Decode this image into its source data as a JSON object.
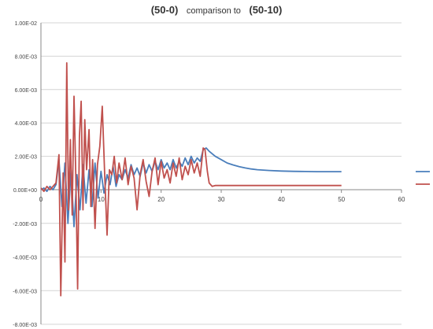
{
  "chart_data": {
    "type": "line",
    "title_parts": [
      "(50-0)",
      "comparison to",
      "(50-10)"
    ],
    "xlabel": "",
    "ylabel": "",
    "xlim": [
      0,
      60
    ],
    "ylim": [
      -0.008,
      0.01
    ],
    "x_ticks": [
      {
        "value": 0,
        "label": "0"
      },
      {
        "value": 10,
        "label": "10"
      },
      {
        "value": 20,
        "label": "20"
      },
      {
        "value": 30,
        "label": "30"
      },
      {
        "value": 40,
        "label": "40"
      },
      {
        "value": 50,
        "label": "50"
      },
      {
        "value": 60,
        "label": "60"
      }
    ],
    "y_ticks": [
      {
        "value": 0.01,
        "label": "1.00E-02"
      },
      {
        "value": 0.008,
        "label": "8.00E-03"
      },
      {
        "value": 0.006,
        "label": "6.00E-03"
      },
      {
        "value": 0.004,
        "label": "4.00E-03"
      },
      {
        "value": 0.002,
        "label": "2.00E-03"
      },
      {
        "value": 0,
        "label": "0.00E+00"
      },
      {
        "value": -0.002,
        "label": "-2.00E-03"
      },
      {
        "value": -0.004,
        "label": "-4.00E-03"
      },
      {
        "value": -0.006,
        "label": "-6.00E-03"
      },
      {
        "value": -0.008,
        "label": "-8.00E-03"
      }
    ],
    "grid": "horizontal",
    "legend": "right",
    "series": [
      {
        "color": "#4a7ebb",
        "points": [
          [
            0,
            0
          ],
          [
            0.5,
            0.0001
          ],
          [
            1,
            -0.0001
          ],
          [
            1.5,
            0.0002
          ],
          [
            2,
            0
          ],
          [
            2.5,
            0.0003
          ],
          [
            3,
            0.0018
          ],
          [
            3.5,
            -0.001
          ],
          [
            4,
            0.0016
          ],
          [
            4.5,
            -0.002
          ],
          [
            5,
            0.0012
          ],
          [
            5.5,
            -0.0022
          ],
          [
            6,
            0.0009
          ],
          [
            6.5,
            -0.0012
          ],
          [
            7,
            0.0015
          ],
          [
            7.5,
            -0.0008
          ],
          [
            8,
            0.0012
          ],
          [
            8.5,
            -0.001
          ],
          [
            9,
            0.0016
          ],
          [
            9.5,
            -0.0005
          ],
          [
            10,
            0.0011
          ],
          [
            10.5,
            -0.0002
          ],
          [
            11,
            0.0009
          ],
          [
            11.5,
            0.0003
          ],
          [
            12,
            0.0014
          ],
          [
            12.5,
            0.0002
          ],
          [
            13,
            0.0009
          ],
          [
            13.5,
            0.0006
          ],
          [
            14,
            0.0012
          ],
          [
            14.5,
            0.0007
          ],
          [
            15,
            0.0015
          ],
          [
            15.5,
            0.0009
          ],
          [
            16,
            0.0013
          ],
          [
            16.5,
            0.0008
          ],
          [
            17,
            0.0016
          ],
          [
            17.5,
            0.001
          ],
          [
            18,
            0.0015
          ],
          [
            18.5,
            0.0011
          ],
          [
            19,
            0.0017
          ],
          [
            19.5,
            0.0012
          ],
          [
            20,
            0.0018
          ],
          [
            20.5,
            0.0013
          ],
          [
            21,
            0.0016
          ],
          [
            21.5,
            0.0012
          ],
          [
            22,
            0.0018
          ],
          [
            22.5,
            0.0013
          ],
          [
            23,
            0.0017
          ],
          [
            23.5,
            0.0014
          ],
          [
            24,
            0.0019
          ],
          [
            24.5,
            0.0015
          ],
          [
            25,
            0.002
          ],
          [
            25.5,
            0.0016
          ],
          [
            26,
            0.0019
          ],
          [
            26.5,
            0.0017
          ],
          [
            27,
            0.0024
          ],
          [
            27.5,
            0.0025
          ],
          [
            28,
            0.0023
          ],
          [
            29,
            0.002
          ],
          [
            30,
            0.0018
          ],
          [
            31,
            0.0016
          ],
          [
            32,
            0.00148
          ],
          [
            33,
            0.00138
          ],
          [
            34,
            0.0013
          ],
          [
            35,
            0.00124
          ],
          [
            36,
            0.0012
          ],
          [
            38,
            0.00115
          ],
          [
            40,
            0.00112
          ],
          [
            42,
            0.0011
          ],
          [
            44,
            0.00109
          ],
          [
            46,
            0.00108
          ],
          [
            48,
            0.00108
          ],
          [
            50,
            0.00108
          ]
        ]
      },
      {
        "color": "#c0504d",
        "points": [
          [
            0,
            0.0001
          ],
          [
            0.5,
            -0.0001
          ],
          [
            1,
            0.0002
          ],
          [
            1.5,
            0
          ],
          [
            2,
            0.0002
          ],
          [
            2.5,
            0.0004
          ],
          [
            3,
            0.0021
          ],
          [
            3.3,
            -0.0063
          ],
          [
            3.7,
            0.001
          ],
          [
            4,
            -0.0043
          ],
          [
            4.3,
            0.0076
          ],
          [
            4.6,
            -0.0012
          ],
          [
            4.9,
            0.003
          ],
          [
            5.2,
            -0.0015
          ],
          [
            5.5,
            0.0056
          ],
          [
            5.8,
            0.0008
          ],
          [
            6.1,
            -0.0059
          ],
          [
            6.4,
            0.0032
          ],
          [
            6.7,
            0.0053
          ],
          [
            7,
            -0.0012
          ],
          [
            7.3,
            0.0042
          ],
          [
            7.6,
            0.0012
          ],
          [
            8,
            0.0036
          ],
          [
            8.3,
            -0.001
          ],
          [
            8.6,
            0.0018
          ],
          [
            9,
            -0.0023
          ],
          [
            9.4,
            0.0015
          ],
          [
            9.8,
            0.0026
          ],
          [
            10.2,
            0.005
          ],
          [
            10.6,
            0.001
          ],
          [
            11,
            -0.0027
          ],
          [
            11.4,
            0.0012
          ],
          [
            11.8,
            0.0009
          ],
          [
            12.2,
            0.002
          ],
          [
            12.6,
            0.0004
          ],
          [
            13,
            0.0016
          ],
          [
            13.5,
            0.0006
          ],
          [
            14,
            0.0019
          ],
          [
            14.5,
            0.0003
          ],
          [
            15,
            0.0014
          ],
          [
            15.5,
            0.0007
          ],
          [
            16,
            -0.0012
          ],
          [
            16.5,
            0.0009
          ],
          [
            17,
            0.0018
          ],
          [
            17.5,
            0.0005
          ],
          [
            18,
            -0.0004
          ],
          [
            18.5,
            0.0011
          ],
          [
            19,
            0.0019
          ],
          [
            19.5,
            0.0003
          ],
          [
            20,
            0.0017
          ],
          [
            20.5,
            0.0007
          ],
          [
            21,
            0.0012
          ],
          [
            21.5,
            0.0004
          ],
          [
            22,
            0.0016
          ],
          [
            22.5,
            0.0008
          ],
          [
            23,
            0.0019
          ],
          [
            23.5,
            0.0006
          ],
          [
            24,
            0.0014
          ],
          [
            24.5,
            0.0009
          ],
          [
            25,
            0.0018
          ],
          [
            25.5,
            0.001
          ],
          [
            26,
            0.0016
          ],
          [
            26.5,
            0.0008
          ],
          [
            27,
            0.0025
          ],
          [
            27.3,
            0.0024
          ],
          [
            27.7,
            0.0011
          ],
          [
            28,
            0.0004
          ],
          [
            28.5,
            0.0002
          ],
          [
            29,
            0.00025
          ],
          [
            30,
            0.00025
          ],
          [
            35,
            0.00025
          ],
          [
            40,
            0.00025
          ],
          [
            45,
            0.00025
          ],
          [
            50,
            0.00025
          ]
        ]
      }
    ]
  }
}
